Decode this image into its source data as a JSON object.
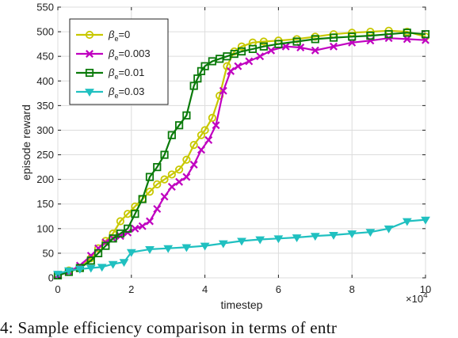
{
  "chart_data": {
    "type": "line",
    "xlabel": "timestep",
    "ylabel": "episode reward",
    "x_exponent_label": "×10",
    "x_exponent_sup": "4",
    "xlim": [
      0,
      10
    ],
    "ylim": [
      0,
      550
    ],
    "xticks": [
      "0",
      "2",
      "4",
      "6",
      "8",
      "10"
    ],
    "yticks": [
      "0",
      "50",
      "100",
      "150",
      "200",
      "250",
      "300",
      "350",
      "400",
      "450",
      "500",
      "550"
    ],
    "grid": true,
    "legend_position": "top-left",
    "series": [
      {
        "name": "βe=0",
        "legend_base": "β",
        "legend_sub": "e",
        "legend_suffix": "=0",
        "color": "#c8c800",
        "marker": "circle",
        "x": [
          0,
          0.3,
          0.6,
          0.9,
          1.1,
          1.3,
          1.5,
          1.7,
          1.9,
          2.1,
          2.3,
          2.5,
          2.7,
          2.9,
          3.1,
          3.3,
          3.5,
          3.7,
          3.9,
          4.0,
          4.2,
          4.4,
          4.6,
          4.8,
          5.0,
          5.3,
          5.6,
          6.0,
          6.5,
          7.0,
          7.5,
          8.0,
          8.5,
          9.0,
          9.5,
          10
        ],
        "y": [
          5,
          15,
          20,
          40,
          60,
          75,
          90,
          115,
          130,
          145,
          160,
          175,
          190,
          200,
          210,
          220,
          240,
          270,
          290,
          300,
          325,
          370,
          430,
          460,
          470,
          478,
          480,
          482,
          485,
          490,
          495,
          498,
          500,
          502,
          500,
          490
        ]
      },
      {
        "name": "βe=0.003",
        "legend_base": "β",
        "legend_sub": "e",
        "legend_suffix": "=0.003",
        "color": "#c000c0",
        "marker": "x",
        "x": [
          0,
          0.3,
          0.6,
          0.9,
          1.1,
          1.3,
          1.5,
          1.7,
          1.9,
          2.1,
          2.3,
          2.5,
          2.7,
          2.9,
          3.1,
          3.3,
          3.5,
          3.7,
          3.9,
          4.1,
          4.3,
          4.5,
          4.7,
          4.9,
          5.2,
          5.5,
          5.8,
          6.2,
          6.6,
          7.0,
          7.5,
          8.0,
          8.5,
          9.0,
          9.5,
          10
        ],
        "y": [
          5,
          12,
          25,
          45,
          60,
          72,
          80,
          85,
          92,
          100,
          105,
          115,
          140,
          165,
          185,
          195,
          205,
          230,
          260,
          280,
          310,
          380,
          420,
          430,
          440,
          450,
          462,
          470,
          468,
          462,
          470,
          478,
          482,
          487,
          485,
          483
        ]
      },
      {
        "name": "βe=0.01",
        "legend_base": "β",
        "legend_sub": "e",
        "legend_suffix": "=0.01",
        "color": "#0a7a0a",
        "marker": "square",
        "x": [
          0,
          0.3,
          0.6,
          0.9,
          1.1,
          1.3,
          1.5,
          1.7,
          1.9,
          2.1,
          2.3,
          2.5,
          2.7,
          2.9,
          3.1,
          3.3,
          3.5,
          3.7,
          3.8,
          3.9,
          4.0,
          4.2,
          4.4,
          4.6,
          4.8,
          5.0,
          5.3,
          5.6,
          6.0,
          6.5,
          7.0,
          7.5,
          8.0,
          8.5,
          9.0,
          9.5,
          10
        ],
        "y": [
          5,
          12,
          20,
          35,
          50,
          65,
          80,
          90,
          100,
          130,
          160,
          205,
          225,
          250,
          290,
          310,
          330,
          390,
          405,
          420,
          430,
          440,
          445,
          450,
          455,
          460,
          465,
          470,
          475,
          480,
          485,
          488,
          490,
          492,
          495,
          498,
          495
        ]
      },
      {
        "name": "βe=0.03",
        "legend_base": "β",
        "legend_sub": "e",
        "legend_suffix": "=0.03",
        "color": "#20c0c0",
        "marker": "triangle-down",
        "x": [
          0,
          0.3,
          0.6,
          0.9,
          1.2,
          1.5,
          1.8,
          2.0,
          2.5,
          3.0,
          3.5,
          4.0,
          4.5,
          5.0,
          5.5,
          6.0,
          6.5,
          7.0,
          7.5,
          8.0,
          8.5,
          9.0,
          9.5,
          10
        ],
        "y": [
          8,
          15,
          18,
          20,
          22,
          28,
          32,
          52,
          58,
          60,
          62,
          65,
          70,
          75,
          78,
          80,
          82,
          85,
          87,
          90,
          93,
          100,
          115,
          118
        ]
      }
    ]
  },
  "caption": "4:  Sample  efficiency  comparison  in  terms  of  entr"
}
